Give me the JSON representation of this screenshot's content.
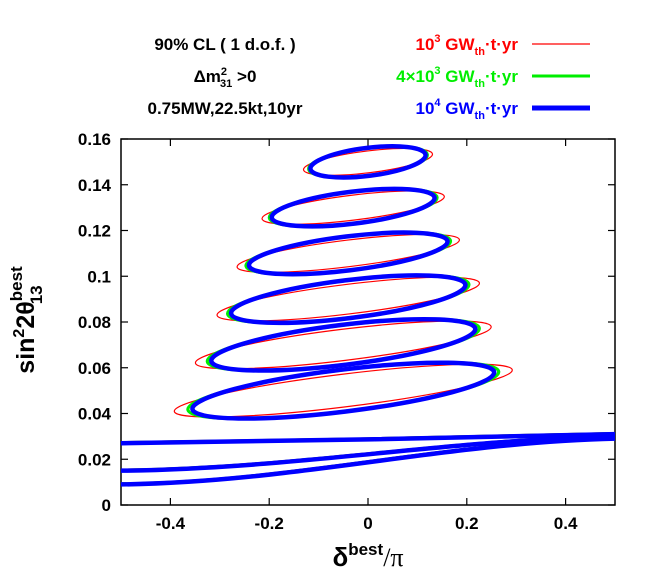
{
  "chart_data": {
    "type": "line",
    "title": "",
    "xlabel": "δ^best/π",
    "ylabel": "sin²2θ13^best",
    "xlim": [
      -0.5,
      0.5
    ],
    "ylim": [
      0,
      0.16
    ],
    "x_ticks": [
      -0.4,
      -0.2,
      0,
      0.2,
      0.4
    ],
    "x_tick_labels": [
      "-0.4",
      "-0.2",
      "0",
      "0.2",
      "0.4"
    ],
    "y_ticks": [
      0,
      0.02,
      0.04,
      0.06,
      0.08,
      0.1,
      0.12,
      0.14,
      0.16
    ],
    "y_tick_labels": [
      "0",
      "0.02",
      "0.04",
      "0.06",
      "0.08",
      "0.1",
      "0.12",
      "0.14",
      "0.16"
    ],
    "grid": false,
    "legend_position": "top-right, outside plot",
    "annotations": [
      "90% CL ( 1 d.o.f. )",
      "Δm²31 >0",
      "0.75MW,22.5kt,10yr"
    ],
    "ellipse_centers": [
      {
        "x": 0.0,
        "y": 0.15
      },
      {
        "x": -0.03,
        "y": 0.13
      },
      {
        "x": -0.04,
        "y": 0.11
      },
      {
        "x": -0.04,
        "y": 0.09
      },
      {
        "x": -0.05,
        "y": 0.07
      },
      {
        "x": -0.05,
        "y": 0.05
      }
    ],
    "series": [
      {
        "name": "10³ GW_th·t·yr",
        "color": "#ff0000",
        "stroke": "thin",
        "ellipse_scale": 1.3
      },
      {
        "name": "4×10³ GW_th·t·yr",
        "color": "#00ee00",
        "stroke": "medium",
        "ellipse_scale": 1.05
      },
      {
        "name": "10⁴ GW_th·t·yr",
        "color": "#0000ff",
        "stroke": "thick",
        "ellipse_scale": 1.0
      }
    ],
    "bands": [
      {
        "y_left": 0.027,
        "y_right": 0.031
      },
      {
        "y_left": 0.015,
        "y_right": 0.03
      },
      {
        "y_left": 0.009,
        "y_right": 0.029
      }
    ]
  },
  "legend": {
    "items": [
      {
        "base": "10",
        "exp": "3",
        "sub": "th",
        "pre": "",
        "suffix": "·t·yr",
        "color": "#ff0000",
        "width": 1.2
      },
      {
        "base": "4×10",
        "exp": "3",
        "sub": "th",
        "pre": "",
        "suffix": "·t·yr",
        "color": "#00ee00",
        "width": 3
      },
      {
        "base": "10",
        "exp": "4",
        "sub": "th",
        "pre": "",
        "suffix": "·t·yr",
        "color": "#0000ff",
        "width": 5
      }
    ]
  }
}
